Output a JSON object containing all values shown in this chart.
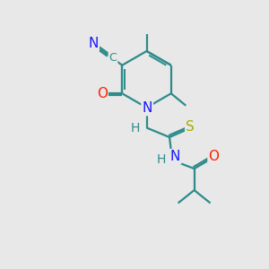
{
  "bg_color": "#e8e8e8",
  "bond_color": "#2e8b8b",
  "bond_width": 1.6,
  "dbo": 0.06,
  "atom_colors": {
    "N": "#1a1aff",
    "O": "#ff2200",
    "S": "#aaaa00",
    "C": "#2e8b8b",
    "H": "#2e8b8b"
  },
  "fs": 11,
  "fs_small": 9
}
